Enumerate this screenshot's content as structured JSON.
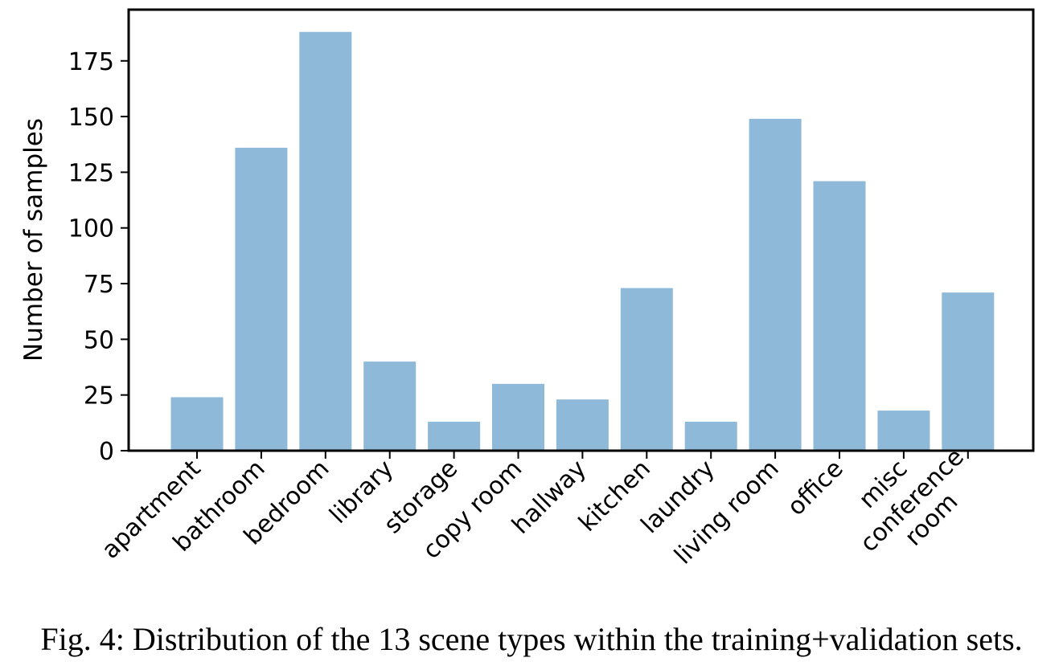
{
  "chart_data": {
    "type": "bar",
    "categories": [
      "apartment",
      "bathroom",
      "bedroom",
      "library",
      "storage",
      "copy room",
      "hallway",
      "kitchen",
      "laundry",
      "living room",
      "office",
      "misc",
      "conference room"
    ],
    "category_labels": [
      [
        "apartment"
      ],
      [
        "bathroom"
      ],
      [
        "bedroom"
      ],
      [
        "library"
      ],
      [
        "storage"
      ],
      [
        "copy room"
      ],
      [
        "hallway"
      ],
      [
        "kitchen"
      ],
      [
        "laundry"
      ],
      [
        "living room"
      ],
      [
        "office"
      ],
      [
        "misc"
      ],
      [
        "conference",
        "room"
      ]
    ],
    "values": [
      24,
      136,
      188,
      40,
      13,
      30,
      23,
      73,
      13,
      149,
      121,
      18,
      71
    ],
    "title": "",
    "xlabel": "",
    "ylabel": "Number of samples",
    "ylim": [
      0,
      198
    ],
    "yticks": [
      0,
      25,
      50,
      75,
      100,
      125,
      150,
      175
    ],
    "grid": false,
    "bar_color": "#8fb9d8"
  },
  "caption": "Fig. 4: Distribution of the 13 scene types within the training+validation sets."
}
